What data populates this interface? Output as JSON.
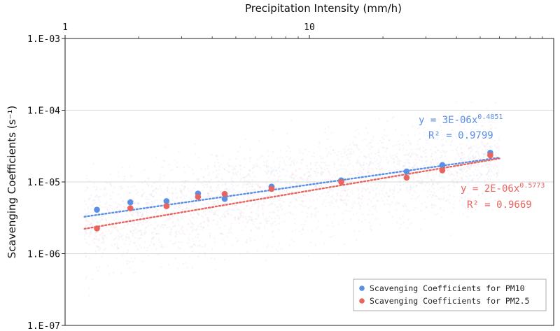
{
  "chart_data": {
    "type": "scatter",
    "title": "",
    "xlabel": "Precipitation Intensity (mm/h)",
    "ylabel": "Scavenging Coefficients (s⁻¹)",
    "x_scale": "log",
    "y_scale": "log",
    "xlim": [
      1,
      100
    ],
    "ylim": [
      1e-07,
      0.001
    ],
    "x_ticks": [
      {
        "value": 1,
        "label": "1"
      },
      {
        "value": 10,
        "label": "10"
      }
    ],
    "y_ticks": [
      {
        "value": 0.001,
        "label": "1.E-03"
      },
      {
        "value": 0.0001,
        "label": "1.E-04"
      },
      {
        "value": 1e-05,
        "label": "1.E-05"
      },
      {
        "value": 1e-06,
        "label": "1.E-06"
      },
      {
        "value": 1e-07,
        "label": "1.E-07"
      }
    ],
    "grid": {
      "horizontal": true,
      "vertical": false
    },
    "legend_position": "bottom-right",
    "series": [
      {
        "name": "Scavenging Coefficients for PM10",
        "color": "#5b8fe3",
        "x": [
          1.35,
          1.85,
          2.6,
          3.5,
          4.5,
          7.0,
          13.5,
          25,
          35,
          55
        ],
        "y": [
          4.1e-06,
          5.2e-06,
          5.4e-06,
          6.9e-06,
          5.8e-06,
          8.6e-06,
          1.05e-05,
          1.4e-05,
          1.72e-05,
          2.55e-05
        ],
        "trendline": {
          "a": 3e-06,
          "b": 0.4851,
          "equation_label": "y = 3E-06x",
          "exponent_label": "0.4851",
          "r2_label": "R² = 0.9799"
        }
      },
      {
        "name": "Scavenging Coefficients for PM2.5",
        "color": "#e8645e",
        "x": [
          1.35,
          1.85,
          2.6,
          3.5,
          4.5,
          7.0,
          13.5,
          25,
          35,
          55
        ],
        "y": [
          2.25e-06,
          4.3e-06,
          4.6e-06,
          6.2e-06,
          6.8e-06,
          8e-06,
          1e-05,
          1.15e-05,
          1.45e-05,
          2.35e-05
        ],
        "trendline": {
          "a": 2e-06,
          "b": 0.5773,
          "equation_label": "y = 2E-06x",
          "exponent_label": "0.5773",
          "r2_label": "R² = 0.9669"
        }
      }
    ]
  }
}
